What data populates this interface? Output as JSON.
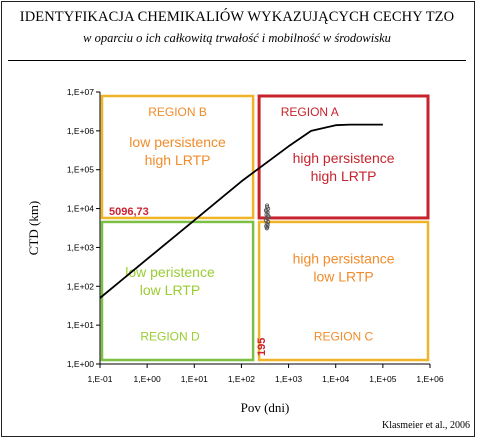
{
  "header": {
    "title": "IDENTYFIKACJA CHEMIKALIÓW WYKAZUJĄCYCH CECHY TZO",
    "subtitle": "w oparciu o ich całkowitą trwałość i mobilność w środowisku"
  },
  "credit": "Klasmeier et al., 2006",
  "chart_data": {
    "type": "line",
    "xlabel": "Pov (dni)",
    "ylabel": "CTD (km)",
    "x_scale": "log",
    "y_scale": "log",
    "xlim": [
      0.1,
      1000000
    ],
    "ylim": [
      1,
      10000000
    ],
    "x_ticks": [
      0.1,
      1,
      10,
      100,
      1000,
      10000,
      100000,
      1000000
    ],
    "x_tick_labels": [
      "1,E-01",
      "1,E+00",
      "1,E+01",
      "1,E+02",
      "1,E+03",
      "1,E+04",
      "1,E+05",
      "1,E+06"
    ],
    "y_ticks": [
      1,
      10,
      100,
      1000,
      10000,
      100000,
      1000000,
      10000000
    ],
    "y_tick_labels": [
      "1,E+00",
      "1,E+01",
      "1,E+02",
      "1,E+03",
      "1,E+04",
      "1,E+05",
      "1,E+06",
      "1,E+07"
    ],
    "grid": false,
    "series": [
      {
        "x": [
          0.1,
          1,
          10,
          100,
          1000,
          3000,
          10000,
          20000,
          100000
        ],
        "y": [
          50,
          500,
          5000,
          50000,
          400000,
          1000000,
          1400000,
          1450000,
          1450000
        ],
        "color": "#000000"
      }
    ],
    "scatter_cluster": {
      "x": [
        350,
        370,
        330,
        360,
        340,
        380,
        350,
        330,
        370,
        345,
        360,
        335,
        355,
        345,
        365,
        340,
        350
      ],
      "y": [
        12000,
        10000,
        9000,
        8000,
        7000,
        6200,
        5600,
        5000,
        4500,
        4100,
        3800,
        3500,
        3300,
        3100,
        6600,
        8500,
        11000
      ],
      "color": "#555555"
    },
    "thresholds": [
      {
        "axis": "x",
        "value": 195,
        "label": "195",
        "color": "#cc2233"
      },
      {
        "axis": "y",
        "value": 5096.73,
        "label": "5096,73",
        "color": "#cc2233"
      }
    ],
    "regions": [
      {
        "id": "A",
        "title": "REGION A",
        "description": [
          "high persistence",
          "high LRTP"
        ],
        "x_range": [
          195,
          1000000
        ],
        "y_range": [
          5096.73,
          10000000
        ],
        "border_color": "#c8232c",
        "title_color": "#c8232c",
        "text_color": "#c8232c"
      },
      {
        "id": "B",
        "title": "REGION B",
        "description": [
          "low persistence",
          "high LRTP"
        ],
        "x_range": [
          0.1,
          195
        ],
        "y_range": [
          5096.73,
          10000000
        ],
        "border_color": "#f0b429",
        "title_color": "#f08c2a",
        "text_color": "#f08c2a"
      },
      {
        "id": "C",
        "title": "REGION C",
        "description": [
          "high persistance",
          "low LRTP"
        ],
        "x_range": [
          195,
          1000000
        ],
        "y_range": [
          1,
          5096.73
        ],
        "border_color": "#f0b429",
        "title_color": "#f08c2a",
        "text_color": "#f08c2a"
      },
      {
        "id": "D",
        "title": "REGION D",
        "description": [
          "low peristence",
          "low LRTP"
        ],
        "x_range": [
          0.1,
          195
        ],
        "y_range": [
          1,
          5096.73
        ],
        "border_color": "#7bc043",
        "title_color": "#9acd32",
        "text_color": "#9acd32"
      }
    ]
  }
}
